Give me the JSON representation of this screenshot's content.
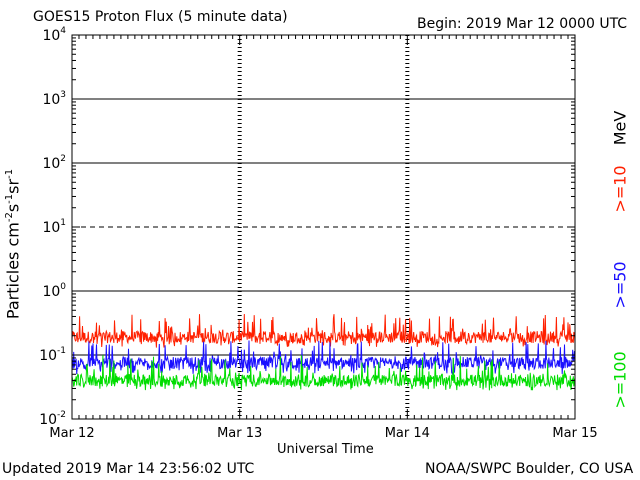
{
  "header": {
    "title": "GOES15 Proton Flux (5 minute data)",
    "begin": "Begin: 2019 Mar 12 0000 UTC"
  },
  "footer": {
    "updated": "Updated 2019 Mar 14 23:56:02 UTC",
    "credit": "NOAA/SWPC Boulder, CO USA"
  },
  "legend": {
    "unit": "MeV",
    "items": [
      {
        "label": ">=10",
        "color": "#ff2000"
      },
      {
        "label": ">=50",
        "color": "#1a10ff"
      },
      {
        "label": ">=100",
        "color": "#00dd00"
      }
    ]
  },
  "chart_data": {
    "type": "line",
    "title": "GOES15 Proton Flux (5 minute data)",
    "xlabel": "Universal Time",
    "ylabel_parts": [
      "Particles cm",
      "-2",
      "s",
      "-1",
      "sr",
      "-1"
    ],
    "x_ticks": [
      "Mar 12",
      "Mar 13",
      "Mar 14",
      "Mar 15"
    ],
    "y_scale": "log",
    "ylim": [
      0.01,
      10000
    ],
    "y_ticks": [
      {
        "base": "10",
        "exp": "-2"
      },
      {
        "base": "10",
        "exp": "-1"
      },
      {
        "base": "10",
        "exp": "0"
      },
      {
        "base": "10",
        "exp": "1"
      },
      {
        "base": "10",
        "exp": "2"
      },
      {
        "base": "10",
        "exp": "3"
      },
      {
        "base": "10",
        "exp": "4"
      }
    ],
    "grid": {
      "solid_at": [
        0.1,
        1,
        100,
        1000
      ],
      "dashed_at": [
        10
      ]
    },
    "series": [
      {
        "name": ">=10",
        "unit": "MeV",
        "color": "#ff2000",
        "typical": 0.19,
        "min": 0.13,
        "max": 0.45
      },
      {
        "name": ">=50",
        "unit": "MeV",
        "color": "#1a10ff",
        "typical": 0.075,
        "min": 0.05,
        "max": 0.17
      },
      {
        "name": ">=100",
        "unit": "MeV",
        "color": "#00dd00",
        "typical": 0.04,
        "min": 0.028,
        "max": 0.1
      }
    ],
    "samples_per_day": 288,
    "days": 3
  }
}
